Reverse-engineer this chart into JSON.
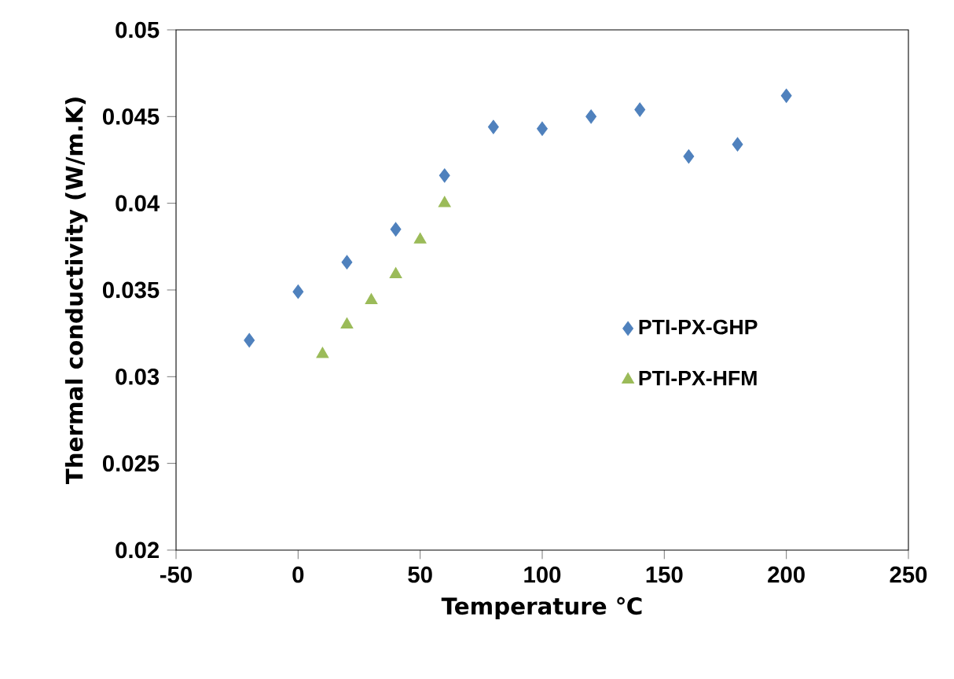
{
  "chart_data": {
    "type": "scatter",
    "xlabel": "Temperature  ℃",
    "ylabel": "Thermal conductivity  (W/m.K)",
    "xlim": [
      -50,
      250
    ],
    "xticks": [
      -50,
      0,
      50,
      100,
      150,
      200,
      250
    ],
    "ylim": [
      0.02,
      0.05
    ],
    "yticks": [
      0.02,
      0.025,
      0.03,
      0.035,
      0.04,
      0.045,
      0.05
    ],
    "grid": false,
    "legend": "right",
    "series": [
      {
        "name": "PTI-PX-GHP",
        "color": "#4f81bd",
        "marker": "diamond",
        "x": [
          -20,
          0,
          20,
          40,
          60,
          80,
          100,
          120,
          140,
          160,
          180,
          200
        ],
        "values": [
          0.0321,
          0.0349,
          0.0366,
          0.0385,
          0.0416,
          0.0444,
          0.0443,
          0.045,
          0.0454,
          0.0427,
          0.0434,
          0.0462
        ]
      },
      {
        "name": "PTI-PX-HFM",
        "color": "#9bbb59",
        "marker": "triangle",
        "x": [
          10,
          20,
          30,
          40,
          50,
          60
        ],
        "values": [
          0.0313,
          0.033,
          0.0344,
          0.0359,
          0.0379,
          0.04
        ]
      }
    ]
  }
}
